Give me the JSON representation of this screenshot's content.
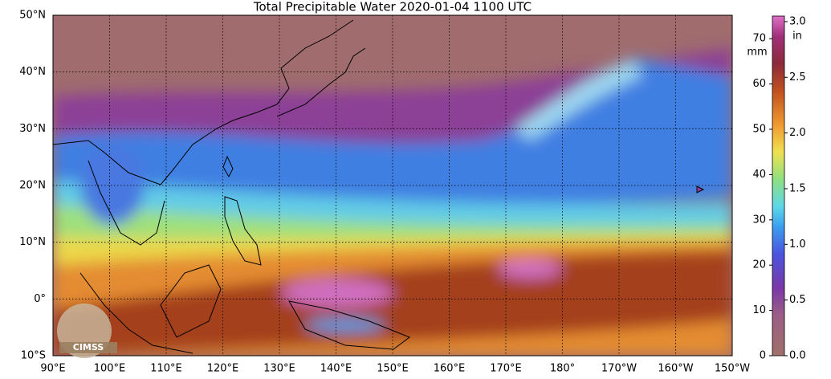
{
  "title": "Total Precipitable Water  2020-01-04 1100 UTC",
  "map": {
    "lat_labels": [
      "50°N",
      "40°N",
      "30°N",
      "20°N",
      "10°N",
      "0°",
      "10°S"
    ],
    "lon_labels": [
      "90°E",
      "100°E",
      "110°E",
      "120°E",
      "130°E",
      "140°E",
      "150°E",
      "160°E",
      "170°E",
      "180°",
      "170°W",
      "160°W",
      "150°W"
    ]
  },
  "colorbar": {
    "mm_label": "mm",
    "in_label": "in",
    "mm_lim": [
      0,
      75
    ],
    "mm_ticks": [
      0,
      10,
      20,
      30,
      40,
      50,
      60,
      70
    ],
    "in_lim": [
      0,
      3.05
    ],
    "in_ticks": [
      {
        "value": 0,
        "label": "0.0"
      },
      {
        "value": 0.5,
        "label": "0.5"
      },
      {
        "value": 1,
        "label": "1.0"
      },
      {
        "value": 1.5,
        "label": "1.5"
      },
      {
        "value": 2,
        "label": "2.0"
      },
      {
        "value": 2.5,
        "label": "2.5"
      },
      {
        "value": 3,
        "label": "3.0"
      }
    ]
  },
  "logo": "CIMSS"
}
